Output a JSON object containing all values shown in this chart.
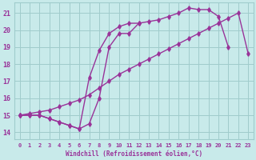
{
  "bg_color": "#c8eaea",
  "grid_color": "#a0cccc",
  "line_color": "#993399",
  "marker_color": "#993399",
  "xlabel": "Windchill (Refroidissement éolien,°C)",
  "xlabel_color": "#993399",
  "xlim": [
    -0.5,
    23.5
  ],
  "ylim": [
    13.6,
    21.6
  ],
  "yticks": [
    14,
    15,
    16,
    17,
    18,
    19,
    20,
    21
  ],
  "xticks": [
    0,
    1,
    2,
    3,
    4,
    5,
    6,
    7,
    8,
    9,
    10,
    11,
    12,
    13,
    14,
    15,
    16,
    17,
    18,
    19,
    20,
    21,
    22,
    23
  ],
  "line1_x": [
    0,
    1,
    2,
    3,
    4,
    5,
    6,
    7,
    8,
    9,
    10,
    11,
    12,
    13,
    14,
    15,
    16,
    17,
    18,
    19,
    20,
    21,
    22,
    23
  ],
  "line1_y": [
    15.0,
    15.1,
    15.2,
    15.3,
    15.5,
    15.7,
    15.9,
    16.2,
    16.6,
    17.0,
    17.4,
    17.7,
    18.0,
    18.3,
    18.6,
    18.9,
    19.2,
    19.5,
    19.8,
    20.1,
    20.4,
    20.7,
    21.0,
    18.6
  ],
  "line2_x": [
    0,
    1,
    2,
    3,
    4,
    5,
    6,
    7,
    8,
    9,
    10,
    11,
    12,
    13,
    14,
    15,
    16,
    17,
    18,
    19,
    20,
    21
  ],
  "line2_y": [
    15.0,
    15.0,
    15.0,
    14.8,
    14.6,
    14.4,
    14.2,
    14.5,
    16.0,
    19.0,
    19.8,
    19.8,
    20.4,
    20.5,
    20.6,
    20.8,
    21.0,
    21.3,
    21.2,
    21.2,
    20.8,
    19.0
  ],
  "line3_x": [
    0,
    1,
    2,
    3,
    4,
    5,
    6,
    7,
    8,
    9,
    10,
    11,
    12
  ],
  "line3_y": [
    15.0,
    15.0,
    15.0,
    14.8,
    14.6,
    14.4,
    14.2,
    17.2,
    18.8,
    19.8,
    20.2,
    20.4,
    20.4
  ]
}
